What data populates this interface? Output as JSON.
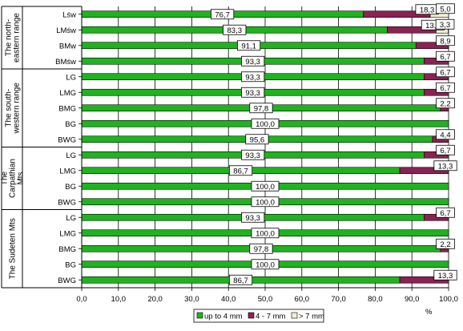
{
  "chart_data": {
    "type": "bar",
    "orientation": "horizontal",
    "stacked": true,
    "xlabel": "%",
    "xlim": [
      0,
      100
    ],
    "xticks": [
      "0,0",
      "10,0",
      "20,0",
      "30,0",
      "40,0",
      "50,0",
      "60,0",
      "70,0",
      "80,0",
      "90,0",
      "100,0"
    ],
    "grid": "vertical",
    "legend_position": "bottom",
    "groups": [
      {
        "name": "The north-eastern range",
        "name_lines": [
          "The north-",
          "eastern range"
        ],
        "rows": [
          "Lśw",
          "LMśw",
          "BMw",
          "BMśw"
        ]
      },
      {
        "name": "The south-western range",
        "name_lines": [
          "The south-",
          "western range"
        ],
        "rows": [
          "LG",
          "LMG",
          "BMG",
          "BG",
          "BWG"
        ]
      },
      {
        "name": "The Carpathian Mts",
        "name_lines": [
          "The",
          "Carpathian",
          "Mts"
        ],
        "rows": [
          "LG",
          "LMG",
          "BG",
          "BWG"
        ]
      },
      {
        "name": "The Sudeten Mts",
        "name_lines": [
          "The Sudeten Mts"
        ],
        "rows": [
          "LG",
          "LMG",
          "BMG",
          "BG",
          "BWG"
        ]
      }
    ],
    "categories": [
      "Lśw",
      "LMśw",
      "BMw",
      "BMśw",
      "LG",
      "LMG",
      "BMG",
      "BG",
      "BWG",
      "LG",
      "LMG",
      "BG",
      "BWG",
      "LG",
      "LMG",
      "BMG",
      "BG",
      "BWG"
    ],
    "series": [
      {
        "name": "up to 4 mm",
        "color": "#1fb31f",
        "values": [
          76.7,
          83.3,
          91.1,
          93.3,
          93.3,
          93.3,
          97.8,
          100.0,
          95.6,
          93.3,
          86.7,
          100.0,
          100.0,
          93.3,
          100.0,
          97.8,
          100.0,
          86.7
        ],
        "labels": [
          "76,7",
          "83,3",
          "91,1",
          "93,3",
          "93,3",
          "93,3",
          "97,8",
          "100,0",
          "95,6",
          "93,3",
          "86,7",
          "100,0",
          "100,0",
          "93,3",
          "100,0",
          "97,8",
          "100,0",
          "86,7"
        ]
      },
      {
        "name": "4 - 7 mm",
        "color": "#8b2252",
        "values": [
          18.3,
          13.3,
          8.9,
          6.7,
          6.7,
          6.7,
          2.2,
          0,
          4.4,
          6.7,
          13.3,
          0,
          0,
          6.7,
          0,
          2.2,
          0,
          13.3
        ],
        "labels": [
          "18,3",
          "13,3",
          "8,9",
          "6,7",
          "6,7",
          "6,7",
          "2,2",
          "",
          "4,4",
          "6,7",
          "13,3",
          "",
          "",
          "6,7",
          "",
          "2,2",
          "",
          "13,3"
        ]
      },
      {
        "name": "> 7 mm",
        "color": "#f2efd2",
        "values": [
          5.0,
          3.3,
          0,
          0,
          0,
          0,
          0,
          0,
          0,
          0,
          0,
          0,
          0,
          0,
          0,
          0,
          0,
          0
        ],
        "labels": [
          "5,0",
          "3,3",
          "",
          "",
          "",
          "",
          "",
          "",
          "",
          "",
          "",
          "",
          "",
          "",
          "",
          "",
          "",
          ""
        ]
      }
    ]
  }
}
